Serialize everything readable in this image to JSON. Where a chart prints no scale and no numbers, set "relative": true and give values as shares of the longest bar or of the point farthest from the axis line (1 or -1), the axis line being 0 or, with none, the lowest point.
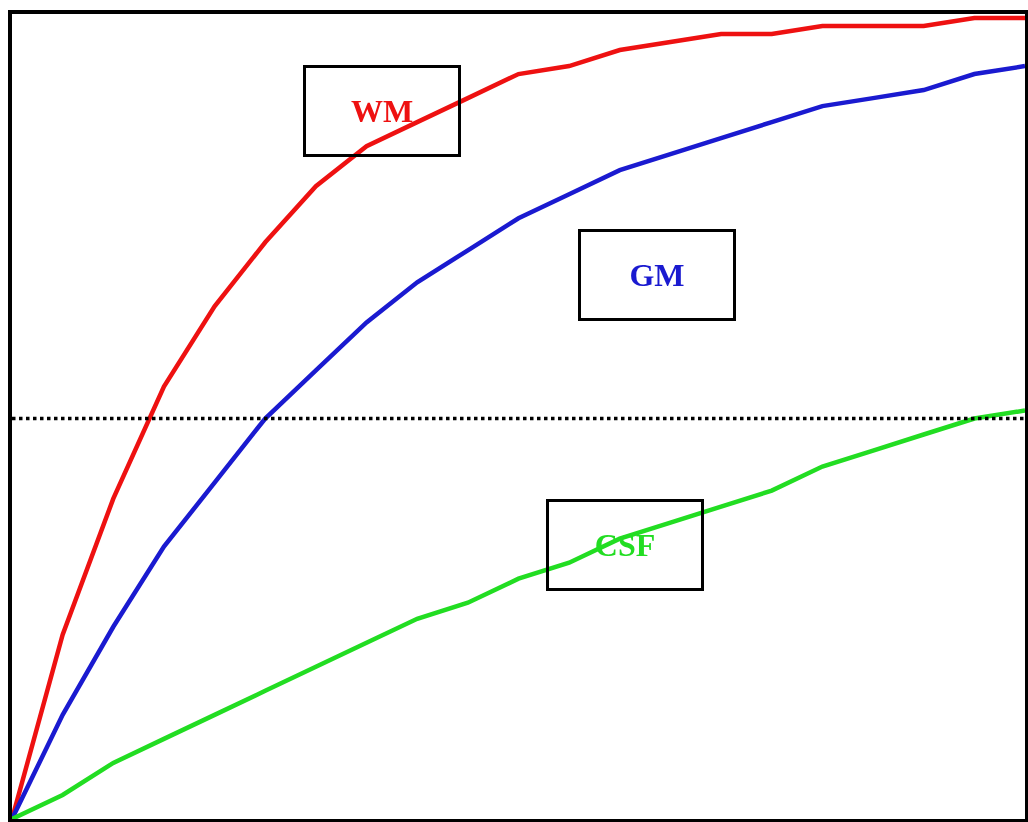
{
  "chart_data": {
    "type": "line",
    "relative": true,
    "categories": [
      null,
      null,
      null,
      null,
      null,
      null,
      null,
      null,
      null,
      null,
      null,
      null,
      null,
      null,
      null,
      null,
      null,
      null,
      null,
      null,
      null
    ],
    "series": [
      {
        "name": "WM",
        "color": "#ee1111",
        "values": [
          0,
          0.23,
          0.4,
          0.54,
          0.64,
          0.72,
          0.79,
          0.84,
          0.87,
          0.9,
          0.93,
          0.94,
          0.96,
          0.97,
          0.98,
          0.98,
          0.99,
          0.99,
          0.99,
          1.0,
          1.0
        ]
      },
      {
        "name": "GM",
        "color": "#1a1ad0",
        "values": [
          0,
          0.13,
          0.24,
          0.34,
          0.42,
          0.5,
          0.56,
          0.62,
          0.67,
          0.71,
          0.75,
          0.78,
          0.81,
          0.83,
          0.85,
          0.87,
          0.89,
          0.9,
          0.91,
          0.93,
          0.94
        ]
      },
      {
        "name": "CSF",
        "color": "#22dd22",
        "values": [
          0,
          0.03,
          0.07,
          0.1,
          0.13,
          0.16,
          0.19,
          0.22,
          0.25,
          0.27,
          0.3,
          0.32,
          0.35,
          0.37,
          0.39,
          0.41,
          0.44,
          0.46,
          0.48,
          0.5,
          0.51
        ]
      }
    ],
    "ref_lines": [
      {
        "axis": "y",
        "value": 0.5,
        "color": "#000000",
        "line_style": "dotted"
      }
    ],
    "legend": false,
    "marker": "none",
    "line_style": "solid"
  }
}
